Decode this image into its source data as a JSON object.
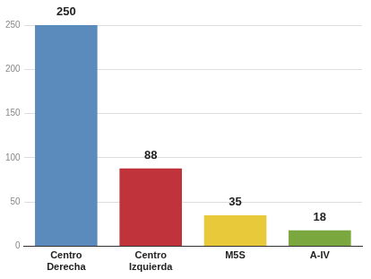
{
  "chart_data": {
    "type": "bar",
    "categories": [
      "Centro Derecha",
      "Centro Izquierda",
      "M5S",
      "A-IV"
    ],
    "values": [
      250,
      88,
      35,
      18
    ],
    "colors": [
      "#5b8bbd",
      "#c0333a",
      "#e8c93a",
      "#7aa83e"
    ],
    "ylim": [
      0,
      250
    ],
    "yticks": [
      0,
      50,
      100,
      150,
      200,
      250
    ],
    "grid": true,
    "data_labels": true
  }
}
